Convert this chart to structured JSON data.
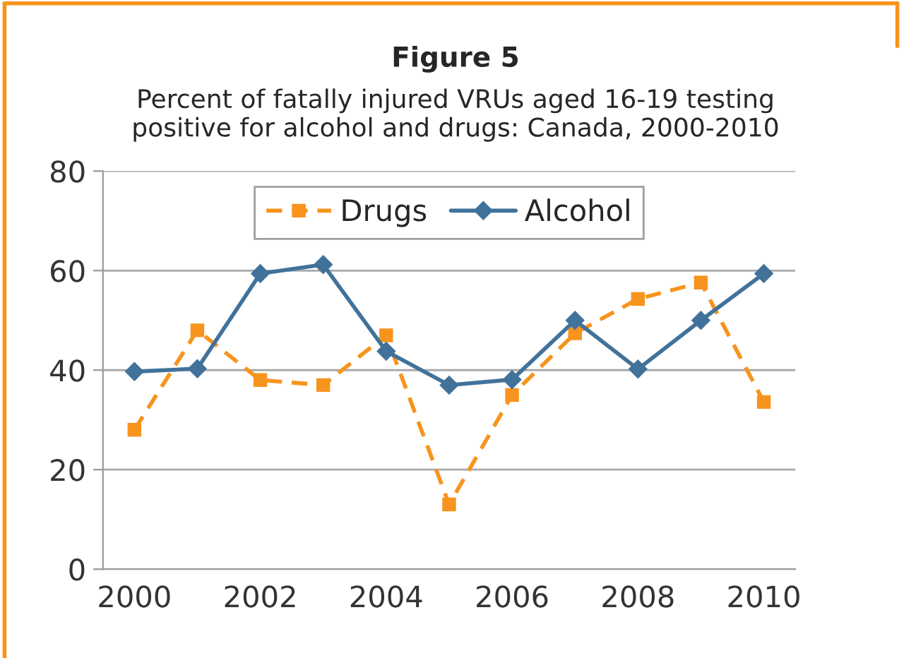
{
  "chart_data": {
    "type": "line",
    "title": "Figure 5",
    "subtitle": "Percent of fatally injured VRUs aged 16-19 testing\npositive for alcohol and drugs: Canada, 2000-2010",
    "categories": [
      "2000",
      null,
      "2002",
      null,
      "2004",
      null,
      "2006",
      null,
      "2008",
      null,
      "2010"
    ],
    "series": [
      {
        "name": "Drugs",
        "color": "#f7941d",
        "marker": "square",
        "line_style": "dashed",
        "values": [
          28,
          48,
          38,
          37,
          47,
          13,
          35,
          47.4,
          54.3,
          57.6,
          33.6
        ]
      },
      {
        "name": "Alcohol",
        "color": "#41729a",
        "marker": "diamond",
        "line_style": "solid",
        "values": [
          39.7,
          40.3,
          59.4,
          61.2,
          43.8,
          37,
          38.1,
          50,
          40.2,
          50,
          59.4
        ]
      }
    ],
    "ylim": [
      0,
      80
    ],
    "yticks": [
      0,
      20,
      40,
      60,
      80
    ],
    "grid": "y",
    "legend": "top"
  }
}
